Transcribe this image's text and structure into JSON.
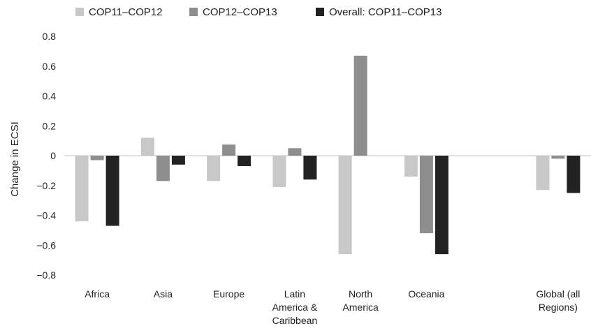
{
  "chart_data": {
    "type": "bar",
    "title": "",
    "xlabel": "",
    "ylabel": "Change in ECSI",
    "ylim": [
      -0.8,
      0.8
    ],
    "yticks": [
      "0.8",
      "0.6",
      "0.4",
      "0.2",
      "0",
      "−0.2",
      "−0.4",
      "−0.6",
      "−0.8"
    ],
    "ytick_values": [
      0.8,
      0.6,
      0.4,
      0.2,
      0,
      -0.2,
      -0.4,
      -0.6,
      -0.8
    ],
    "categories": [
      [
        "Africa"
      ],
      [
        "Asia"
      ],
      [
        "Europe"
      ],
      [
        "Latin",
        "America &",
        "Caribbean"
      ],
      [
        "North",
        "America"
      ],
      [
        "Oceania"
      ],
      [],
      [
        "Global (all",
        "Regions)"
      ]
    ],
    "series": [
      {
        "name": "COP11–COP12",
        "color": "#c8c8c8",
        "values": [
          -0.44,
          0.12,
          -0.17,
          -0.21,
          -0.66,
          -0.14,
          null,
          -0.23
        ]
      },
      {
        "name": "COP12–COP13",
        "color": "#8e8e8e",
        "values": [
          -0.03,
          -0.17,
          0.075,
          0.05,
          0.67,
          -0.52,
          null,
          -0.02
        ]
      },
      {
        "name": "Overall: COP11–COP13",
        "color": "#222222",
        "values": [
          -0.47,
          -0.06,
          -0.07,
          -0.16,
          null,
          -0.66,
          null,
          -0.25
        ]
      }
    ],
    "legend_position": "top",
    "grid": false
  }
}
